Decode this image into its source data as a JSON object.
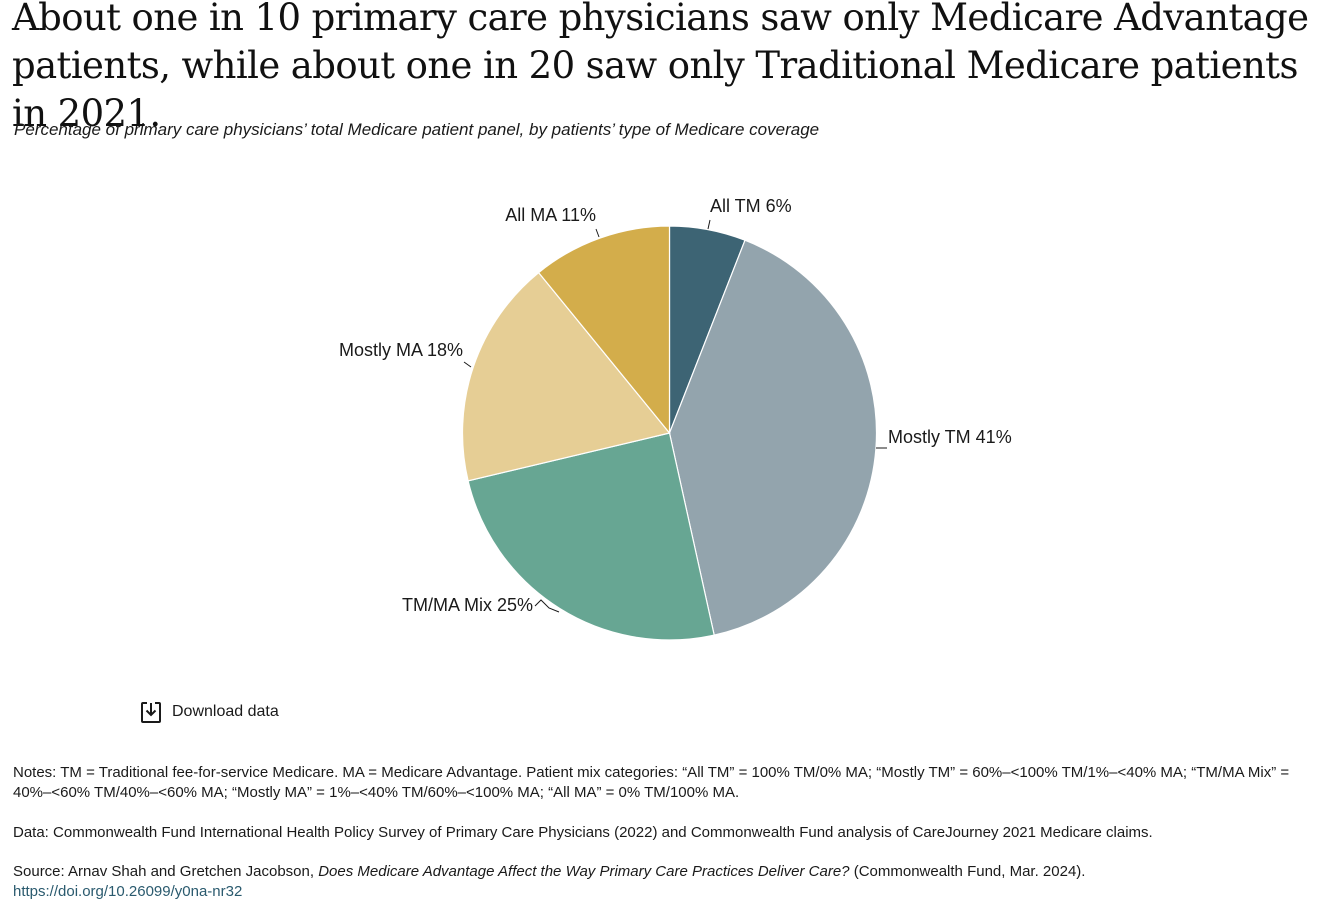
{
  "header": {
    "title": "About one in 10 primary care physicians saw only Medicare Advantage patients, while about one in 20 saw only Traditional Medicare patients in 2021.",
    "subtitle": "Percentage of primary care physicians’ total Medicare patient panel, by patients’ type of Medicare coverage"
  },
  "chart_data": {
    "type": "pie",
    "title": "",
    "categories": [
      "All TM",
      "Mostly TM",
      "TM/MA Mix",
      "Mostly MA",
      "All MA"
    ],
    "values": [
      6,
      41,
      25,
      18,
      11
    ],
    "labels": [
      "All TM 6%",
      "Mostly TM 41%",
      "TM/MA Mix 25%",
      "Mostly MA 18%",
      "All MA 11%"
    ],
    "colors": [
      "#3d6474",
      "#93a4ad",
      "#67a693",
      "#e6ce95",
      "#d3ad4b"
    ],
    "start": "12 o'clock",
    "direction": "clockwise",
    "legend": "none"
  },
  "download": {
    "label": "Download data",
    "icon": "download-icon"
  },
  "footer": {
    "notes": "Notes: TM = Traditional fee-for-service Medicare. MA = Medicare Advantage. Patient mix categories: “All TM” = 100% TM/0% MA; “Mostly TM” = 60%–<100% TM/1%–<40% MA; “TM/MA Mix” = 40%–<60% TM/40%–<60% MA; “Mostly MA” = 1%–<40% TM/60%–<100% MA; “All MA” = 0% TM/100% MA.",
    "data": "Data: Commonwealth Fund International Health Policy Survey of Primary Care Physicians (2022) and Commonwealth Fund analysis of CareJourney 2021 Medicare claims.",
    "source_prefix": "Source: Arnav Shah and Gretchen Jacobson, ",
    "source_title": "Does Medicare Advantage Affect the Way Primary Care Practices Deliver Care?",
    "source_suffix": " (Commonwealth Fund, Mar. 2024).",
    "doi": "https://doi.org/10.26099/y0na-nr32"
  }
}
